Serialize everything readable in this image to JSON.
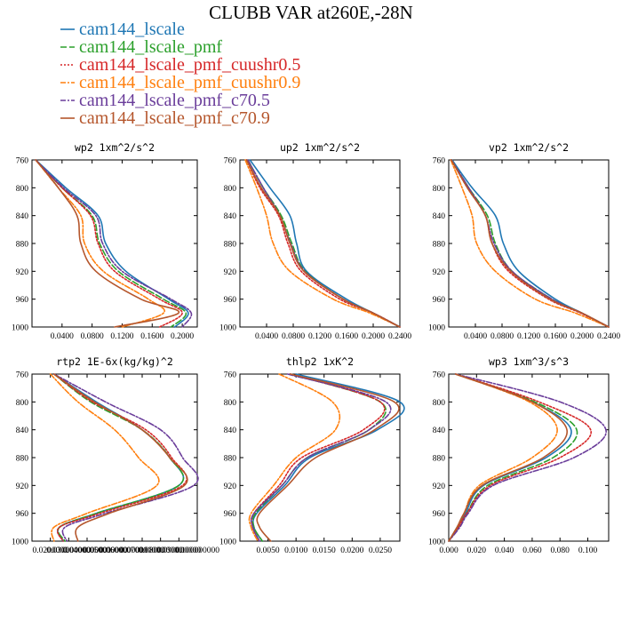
{
  "title": "CLUBB VAR at260E,-28N",
  "legend": [
    {
      "name": "cam144_lscale",
      "color": "#1f77b4",
      "dash": "solid"
    },
    {
      "name": "cam144_lscale_pmf",
      "color": "#2ca02c",
      "dash": "longdash"
    },
    {
      "name": "cam144_lscale_pmf_cuushr0.5",
      "color": "#d62728",
      "dash": "dotted"
    },
    {
      "name": "cam144_lscale_pmf_cuushr0.9",
      "color": "#ff7f0e",
      "dash": "dashdot"
    },
    {
      "name": "cam144_lscale_pmf_c70.5",
      "color": "#6a3d9a",
      "dash": "dashdot"
    },
    {
      "name": "cam144_lscale_pmf_c70.9",
      "color": "#b5562c",
      "dash": "solid"
    }
  ],
  "chart_data": [
    {
      "type": "line",
      "title": "wp2  1xm^2/s^2",
      "xlim": [
        0,
        0.22
      ],
      "ylim": [
        760,
        1000
      ],
      "y": [
        760,
        800,
        840,
        880,
        920,
        960,
        980,
        1000
      ],
      "xticks": [
        "0.0400",
        "0.0800",
        "0.1200",
        "0.1600",
        "0.2000"
      ],
      "xtick_values": [
        0.04,
        0.08,
        0.12,
        0.16,
        0.2
      ],
      "yticks": [
        "760",
        "800",
        "840",
        "880",
        "920",
        "960",
        "1000"
      ],
      "series": [
        {
          "name": "cam144_lscale",
          "values": [
            0.005,
            0.045,
            0.088,
            0.098,
            0.125,
            0.182,
            0.208,
            0.19
          ]
        },
        {
          "name": "cam144_lscale_pmf",
          "values": [
            0.005,
            0.04,
            0.08,
            0.09,
            0.115,
            0.175,
            0.205,
            0.185
          ]
        },
        {
          "name": "cam144_lscale_pmf_cuushr0.5",
          "values": [
            0.005,
            0.04,
            0.078,
            0.088,
            0.11,
            0.17,
            0.2,
            0.17
          ]
        },
        {
          "name": "cam144_lscale_pmf_cuushr0.9",
          "values": [
            0.005,
            0.035,
            0.065,
            0.07,
            0.095,
            0.155,
            0.175,
            0.12
          ]
        },
        {
          "name": "cam144_lscale_pmf_c70.5",
          "values": [
            0.005,
            0.042,
            0.085,
            0.094,
            0.12,
            0.185,
            0.212,
            0.2
          ]
        },
        {
          "name": "cam144_lscale_pmf_c70.9",
          "values": [
            0.005,
            0.035,
            0.06,
            0.065,
            0.085,
            0.145,
            0.195,
            0.11
          ]
        }
      ]
    },
    {
      "type": "line",
      "title": "up2  1xm^2/s^2",
      "xlim": [
        0,
        0.24
      ],
      "ylim": [
        760,
        1000
      ],
      "y": [
        760,
        800,
        840,
        880,
        920,
        960,
        980,
        1000
      ],
      "xticks": [
        "0.0400",
        "0.0800",
        "0.1200",
        "0.1600",
        "0.2000",
        "0.2400"
      ],
      "xtick_values": [
        0.04,
        0.08,
        0.12,
        0.16,
        0.2,
        0.24
      ],
      "yticks": [
        "760",
        "800",
        "840",
        "880",
        "920",
        "960",
        "1000"
      ],
      "series": [
        {
          "name": "cam144_lscale",
          "values": [
            0.015,
            0.045,
            0.075,
            0.085,
            0.1,
            0.16,
            0.2,
            0.24
          ]
        },
        {
          "name": "cam144_lscale_pmf",
          "values": [
            0.012,
            0.035,
            0.062,
            0.078,
            0.098,
            0.155,
            0.2,
            0.24
          ]
        },
        {
          "name": "cam144_lscale_pmf_cuushr0.5",
          "values": [
            0.01,
            0.03,
            0.058,
            0.072,
            0.092,
            0.15,
            0.2,
            0.24
          ]
        },
        {
          "name": "cam144_lscale_pmf_cuushr0.9",
          "values": [
            0.008,
            0.025,
            0.04,
            0.05,
            0.075,
            0.14,
            0.195,
            0.24
          ]
        },
        {
          "name": "cam144_lscale_pmf_c70.5",
          "values": [
            0.012,
            0.035,
            0.06,
            0.076,
            0.097,
            0.155,
            0.2,
            0.24
          ]
        },
        {
          "name": "cam144_lscale_pmf_c70.9",
          "values": [
            0.01,
            0.032,
            0.06,
            0.075,
            0.096,
            0.155,
            0.2,
            0.24
          ]
        }
      ]
    },
    {
      "type": "line",
      "title": "vp2  1xm^2/s^2",
      "xlim": [
        0,
        0.24
      ],
      "ylim": [
        760,
        1000
      ],
      "y": [
        760,
        800,
        840,
        880,
        920,
        960,
        980,
        1000
      ],
      "xticks": [
        "0.0400",
        "0.0800",
        "0.1200",
        "0.1600",
        "0.2000",
        "0.2400"
      ],
      "xtick_values": [
        0.04,
        0.08,
        0.12,
        0.16,
        0.2,
        0.24
      ],
      "yticks": [
        "760",
        "800",
        "840",
        "880",
        "920",
        "960",
        "1000"
      ],
      "series": [
        {
          "name": "cam144_lscale",
          "values": [
            0.005,
            0.035,
            0.07,
            0.082,
            0.105,
            0.16,
            0.2,
            0.24
          ]
        },
        {
          "name": "cam144_lscale_pmf",
          "values": [
            0.004,
            0.03,
            0.058,
            0.07,
            0.095,
            0.155,
            0.2,
            0.24
          ]
        },
        {
          "name": "cam144_lscale_pmf_cuushr0.5",
          "values": [
            0.004,
            0.028,
            0.055,
            0.065,
            0.09,
            0.15,
            0.198,
            0.24
          ]
        },
        {
          "name": "cam144_lscale_pmf_cuushr0.9",
          "values": [
            0.003,
            0.02,
            0.035,
            0.042,
            0.07,
            0.13,
            0.19,
            0.24
          ]
        },
        {
          "name": "cam144_lscale_pmf_c70.5",
          "values": [
            0.004,
            0.03,
            0.055,
            0.068,
            0.095,
            0.155,
            0.2,
            0.24
          ]
        },
        {
          "name": "cam144_lscale_pmf_c70.9",
          "values": [
            0.004,
            0.028,
            0.055,
            0.065,
            0.093,
            0.152,
            0.2,
            0.24
          ]
        }
      ]
    },
    {
      "type": "line",
      "title": "rtp2  1E-6x(kg/kg)^2",
      "xlim": [
        0.01,
        0.1
      ],
      "ylim": [
        760,
        1000
      ],
      "y": [
        760,
        800,
        840,
        880,
        920,
        960,
        980,
        1000
      ],
      "xticks": [
        "0.0200000",
        "0.030000000",
        "0.0400000001",
        "0.050000000",
        "0.0600000001",
        "0.070000000",
        "0.080000000",
        "0.090000000",
        "0.100000000"
      ],
      "xtick_values": [
        0.02,
        0.03,
        0.04,
        0.05,
        0.06,
        0.07,
        0.08,
        0.09,
        0.1
      ],
      "yticks": [
        "760",
        "800",
        "840",
        "880",
        "920",
        "960",
        "1000"
      ],
      "series": [
        {
          "name": "cam144_lscale",
          "values": [
            0.022,
            0.045,
            0.07,
            0.085,
            0.09,
            0.045,
            0.025,
            0.027
          ]
        },
        {
          "name": "cam144_lscale_pmf",
          "values": [
            0.022,
            0.042,
            0.07,
            0.085,
            0.09,
            0.045,
            0.025,
            0.028
          ]
        },
        {
          "name": "cam144_lscale_pmf_cuushr0.5",
          "values": [
            0.022,
            0.043,
            0.072,
            0.086,
            0.092,
            0.047,
            0.025,
            0.027
          ]
        },
        {
          "name": "cam144_lscale_pmf_cuushr0.9",
          "values": [
            0.02,
            0.035,
            0.055,
            0.068,
            0.078,
            0.04,
            0.022,
            0.022
          ]
        },
        {
          "name": "cam144_lscale_pmf_c70.5",
          "values": [
            0.022,
            0.05,
            0.08,
            0.092,
            0.098,
            0.05,
            0.028,
            0.029
          ]
        },
        {
          "name": "cam144_lscale_pmf_c70.9",
          "values": [
            0.022,
            0.044,
            0.07,
            0.085,
            0.093,
            0.052,
            0.035,
            0.035
          ]
        }
      ]
    },
    {
      "type": "line",
      "title": "thlp2  1xK^2",
      "xlim": [
        0,
        0.0285
      ],
      "ylim": [
        760,
        1000
      ],
      "y": [
        760,
        800,
        840,
        880,
        920,
        960,
        980,
        1000
      ],
      "xticks": [
        "0.0050",
        "0.0100",
        "0.0150",
        "0.0200",
        "0.0250"
      ],
      "xtick_values": [
        0.005,
        0.01,
        0.015,
        0.02,
        0.025
      ],
      "yticks": [
        "760",
        "800",
        "840",
        "880",
        "920",
        "960",
        "1000"
      ],
      "series": [
        {
          "name": "cam144_lscale",
          "values": [
            0.01,
            0.0285,
            0.0245,
            0.0125,
            0.008,
            0.003,
            0.0025,
            0.004
          ]
        },
        {
          "name": "cam144_lscale_pmf",
          "values": [
            0.009,
            0.025,
            0.023,
            0.012,
            0.0075,
            0.0028,
            0.0025,
            0.004
          ]
        },
        {
          "name": "cam144_lscale_pmf_cuushr0.5",
          "values": [
            0.009,
            0.025,
            0.022,
            0.011,
            0.007,
            0.0025,
            0.0023,
            0.0035
          ]
        },
        {
          "name": "cam144_lscale_pmf_cuushr0.9",
          "values": [
            0.007,
            0.0165,
            0.017,
            0.01,
            0.006,
            0.002,
            0.002,
            0.0032
          ]
        },
        {
          "name": "cam144_lscale_pmf_c70.5",
          "values": [
            0.0085,
            0.026,
            0.023,
            0.012,
            0.0075,
            0.0025,
            0.0023,
            0.0035
          ]
        },
        {
          "name": "cam144_lscale_pmf_c70.9",
          "values": [
            0.009,
            0.0275,
            0.024,
            0.0135,
            0.0085,
            0.0035,
            0.0035,
            0.0055
          ]
        }
      ]
    },
    {
      "type": "line",
      "title": "wp3  1xm^3/s^3",
      "xlim": [
        0,
        0.115
      ],
      "ylim": [
        760,
        1000
      ],
      "y": [
        760,
        800,
        840,
        880,
        920,
        960,
        980,
        1000
      ],
      "xticks": [
        "0.000",
        "0.020",
        "0.040",
        "0.060",
        "0.080",
        "0.100"
      ],
      "xtick_values": [
        0.0,
        0.02,
        0.04,
        0.06,
        0.08,
        0.1
      ],
      "yticks": [
        "760",
        "800",
        "840",
        "880",
        "920",
        "960",
        "1000"
      ],
      "series": [
        {
          "name": "cam144_lscale",
          "values": [
            0.005,
            0.06,
            0.088,
            0.07,
            0.025,
            0.012,
            0.006,
            0.0
          ]
        },
        {
          "name": "cam144_lscale_pmf",
          "values": [
            0.005,
            0.062,
            0.092,
            0.075,
            0.028,
            0.013,
            0.007,
            0.0
          ]
        },
        {
          "name": "cam144_lscale_pmf_cuushr0.5",
          "values": [
            0.005,
            0.065,
            0.102,
            0.08,
            0.03,
            0.013,
            0.007,
            0.0
          ]
        },
        {
          "name": "cam144_lscale_pmf_cuushr0.9",
          "values": [
            0.005,
            0.058,
            0.078,
            0.06,
            0.022,
            0.011,
            0.006,
            0.0
          ]
        },
        {
          "name": "cam144_lscale_pmf_c70.5",
          "values": [
            0.005,
            0.08,
            0.113,
            0.09,
            0.032,
            0.014,
            0.008,
            0.0
          ]
        },
        {
          "name": "cam144_lscale_pmf_c70.9",
          "values": [
            0.005,
            0.06,
            0.085,
            0.068,
            0.024,
            0.011,
            0.006,
            0.0
          ]
        }
      ]
    }
  ]
}
